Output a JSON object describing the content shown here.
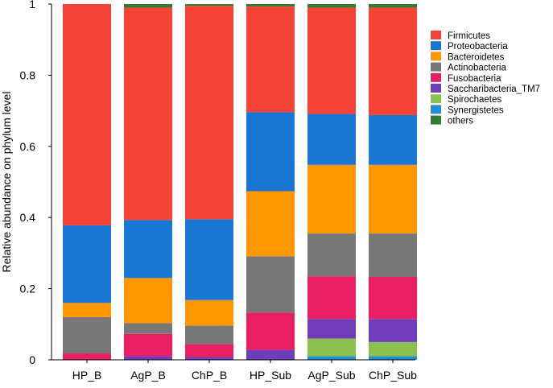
{
  "chart_data": {
    "type": "bar",
    "stacked": true,
    "title": "",
    "xlabel": "",
    "ylabel": "Relative abundance on phylum level",
    "ylim": [
      0,
      1
    ],
    "yticks": [
      "0",
      "0.2",
      "0.4",
      "0.6",
      "0.8",
      "1"
    ],
    "ytick_values": [
      0,
      0.2,
      0.4,
      0.6,
      0.8,
      1
    ],
    "categories": [
      "HP_B",
      "AgP_B",
      "ChP_B",
      "HP_Sub",
      "AgP_Sub",
      "ChP_Sub"
    ],
    "legend_position": "top-right",
    "series": [
      {
        "name": "Synergistetes",
        "color": "#1f8fd8",
        "values": [
          0.0,
          0.0,
          0.0,
          0.0,
          0.01,
          0.01
        ]
      },
      {
        "name": "Spirochaetes",
        "color": "#8cc152",
        "values": [
          0.0,
          0.0,
          0.0,
          0.0,
          0.05,
          0.04
        ]
      },
      {
        "name": "Saccharibacteria_TM7",
        "color": "#6f3db8",
        "values": [
          0.0,
          0.01,
          0.008,
          0.028,
          0.055,
          0.065
        ]
      },
      {
        "name": "Fusobacteria",
        "color": "#e91e63",
        "values": [
          0.018,
          0.063,
          0.036,
          0.105,
          0.12,
          0.118
        ]
      },
      {
        "name": "Actinobacteria",
        "color": "#777777",
        "values": [
          0.102,
          0.03,
          0.052,
          0.158,
          0.12,
          0.122
        ]
      },
      {
        "name": "Bacteroidetes",
        "color": "#ff9800",
        "values": [
          0.04,
          0.127,
          0.072,
          0.183,
          0.193,
          0.193
        ]
      },
      {
        "name": "Proteobacteria",
        "color": "#1976d2",
        "values": [
          0.218,
          0.163,
          0.227,
          0.222,
          0.143,
          0.14
        ]
      },
      {
        "name": "Firmicutes",
        "color": "#f44336",
        "values": [
          0.622,
          0.597,
          0.6,
          0.297,
          0.299,
          0.302
        ]
      },
      {
        "name": "others",
        "color": "#2e7d32",
        "values": [
          0.0,
          0.01,
          0.005,
          0.007,
          0.01,
          0.01
        ]
      }
    ],
    "legend_order": [
      "Firmicutes",
      "Proteobacteria",
      "Bacteroidetes",
      "Actinobacteria",
      "Fusobacteria",
      "Saccharibacteria_TM7",
      "Spirochaetes",
      "Synergistetes",
      "others"
    ]
  }
}
